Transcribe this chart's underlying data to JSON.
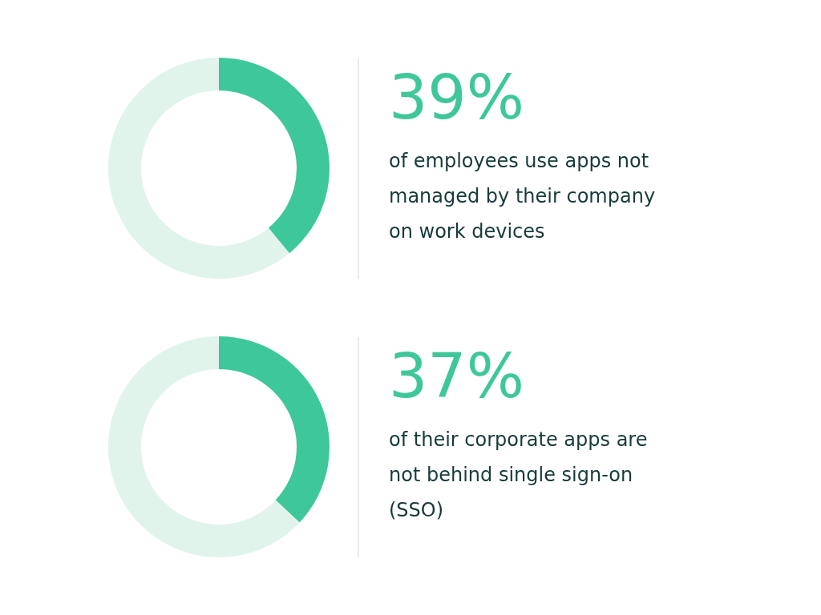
{
  "chart_data": [
    {
      "type": "donut",
      "title": "39%",
      "subtitle": "of employees use apps not managed by their company on work devices",
      "categories": [
        null,
        null
      ],
      "values": [
        39,
        61
      ],
      "colors": [
        "#3ec79a",
        "#e1f4ec"
      ]
    },
    {
      "type": "donut",
      "title": "37%",
      "subtitle": "of their corporate apps are not behind single sign-on (SSO)",
      "categories": [
        null,
        null
      ],
      "values": [
        37,
        63
      ],
      "colors": [
        "#3ec79a",
        "#e1f4ec"
      ]
    }
  ]
}
